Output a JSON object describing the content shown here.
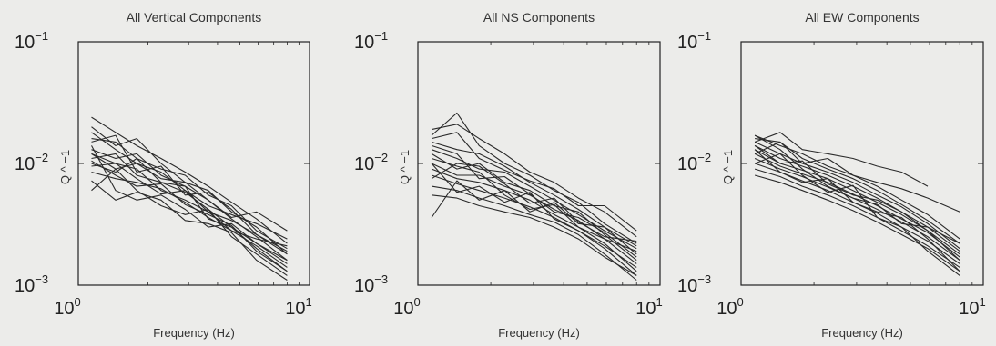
{
  "chart_data": [
    {
      "type": "line",
      "title": "All Vertical Components",
      "xlabel": "Frequency (Hz)",
      "ylabel": "Q ^ −1",
      "xscale": "log",
      "yscale": "log",
      "xlim": [
        1,
        10
      ],
      "ylim": [
        0.001,
        0.1
      ],
      "xticks": [
        {
          "base": "10",
          "exp": "0",
          "value": 1
        },
        {
          "base": "10",
          "exp": "1",
          "value": 10
        }
      ],
      "yticks": [
        {
          "base": "10",
          "exp": "−1",
          "value": 0.1
        },
        {
          "base": "10",
          "exp": "−2",
          "value": 0.01
        },
        {
          "base": "10",
          "exp": "−3",
          "value": 0.001
        }
      ],
      "grid": false,
      "x": [
        1.14,
        1.45,
        1.79,
        2.28,
        2.9,
        3.65,
        4.6,
        5.9,
        8.0
      ],
      "series": [
        {
          "values": [
            0.024,
            0.018,
            0.014,
            0.011,
            0.0085,
            0.0065,
            0.0048,
            0.0035,
            0.0022
          ]
        },
        {
          "values": [
            0.02,
            0.014,
            0.016,
            0.01,
            0.007,
            0.006,
            0.004,
            0.003,
            0.0018
          ]
        },
        {
          "values": [
            0.016,
            0.015,
            0.011,
            0.009,
            0.008,
            0.0055,
            0.0045,
            0.0028,
            0.002
          ]
        },
        {
          "values": [
            0.013,
            0.011,
            0.012,
            0.008,
            0.0065,
            0.005,
            0.0035,
            0.0025,
            0.0016
          ]
        },
        {
          "values": [
            0.012,
            0.009,
            0.01,
            0.0085,
            0.006,
            0.0045,
            0.0038,
            0.0032,
            0.0024
          ]
        },
        {
          "values": [
            0.011,
            0.012,
            0.008,
            0.007,
            0.0058,
            0.0042,
            0.003,
            0.0022,
            0.0015
          ]
        },
        {
          "values": [
            0.0095,
            0.01,
            0.009,
            0.006,
            0.005,
            0.004,
            0.0034,
            0.0026,
            0.0019
          ]
        },
        {
          "values": [
            0.0085,
            0.0075,
            0.007,
            0.0062,
            0.0048,
            0.0036,
            0.0028,
            0.0021,
            0.0014
          ]
        },
        {
          "values": [
            0.006,
            0.009,
            0.006,
            0.0045,
            0.0038,
            0.0042,
            0.0025,
            0.0018,
            0.0012
          ]
        },
        {
          "values": [
            0.014,
            0.006,
            0.005,
            0.0055,
            0.0042,
            0.003,
            0.0032,
            0.0022,
            0.0016
          ]
        },
        {
          "values": [
            0.018,
            0.013,
            0.01,
            0.0075,
            0.007,
            0.005,
            0.0036,
            0.004,
            0.0028
          ]
        },
        {
          "values": [
            0.01,
            0.0085,
            0.011,
            0.007,
            0.0065,
            0.0035,
            0.003,
            0.002,
            0.0013
          ]
        },
        {
          "values": [
            0.0072,
            0.005,
            0.0058,
            0.005,
            0.0034,
            0.0032,
            0.0027,
            0.0016,
            0.0011
          ]
        },
        {
          "values": [
            0.015,
            0.017,
            0.0085,
            0.0095,
            0.0055,
            0.0058,
            0.0042,
            0.0026,
            0.0018
          ]
        },
        {
          "values": [
            0.012,
            0.01,
            0.0075,
            0.0056,
            0.006,
            0.004,
            0.0028,
            0.0024,
            0.0021
          ]
        },
        {
          "values": [
            0.0105,
            0.008,
            0.0065,
            0.0068,
            0.0046,
            0.0038,
            0.0031,
            0.0019,
            0.0013
          ]
        }
      ]
    },
    {
      "type": "line",
      "title": "All NS Components",
      "xlabel": "Frequency (Hz)",
      "ylabel": "Q ^ −1",
      "xscale": "log",
      "yscale": "log",
      "xlim": [
        1,
        10
      ],
      "ylim": [
        0.001,
        0.1
      ],
      "xticks": [
        {
          "base": "10",
          "exp": "0",
          "value": 1
        },
        {
          "base": "10",
          "exp": "1",
          "value": 10
        }
      ],
      "yticks": [
        {
          "base": "10",
          "exp": "−1",
          "value": 0.1
        },
        {
          "base": "10",
          "exp": "−2",
          "value": 0.01
        },
        {
          "base": "10",
          "exp": "−3",
          "value": 0.001
        }
      ],
      "grid": false,
      "x": [
        1.14,
        1.45,
        1.79,
        2.28,
        2.9,
        3.65,
        4.6,
        5.9,
        8.0
      ],
      "series": [
        {
          "values": [
            0.019,
            0.021,
            0.016,
            0.012,
            0.0085,
            0.007,
            0.0052,
            0.004,
            0.0025
          ]
        },
        {
          "values": [
            0.017,
            0.026,
            0.014,
            0.01,
            0.008,
            0.006,
            0.0048,
            0.0032,
            0.0022
          ]
        },
        {
          "values": [
            0.015,
            0.013,
            0.012,
            0.0095,
            0.007,
            0.0055,
            0.0042,
            0.003,
            0.0018
          ]
        },
        {
          "values": [
            0.013,
            0.011,
            0.009,
            0.0085,
            0.0065,
            0.005,
            0.0038,
            0.0028,
            0.002
          ]
        },
        {
          "values": [
            0.012,
            0.009,
            0.01,
            0.007,
            0.006,
            0.0045,
            0.004,
            0.0026,
            0.0016
          ]
        },
        {
          "values": [
            0.01,
            0.008,
            0.008,
            0.0065,
            0.0055,
            0.0042,
            0.0034,
            0.0024,
            0.0015
          ]
        },
        {
          "values": [
            0.009,
            0.0075,
            0.007,
            0.006,
            0.005,
            0.0038,
            0.003,
            0.0022,
            0.0013
          ]
        },
        {
          "values": [
            0.008,
            0.0068,
            0.006,
            0.0052,
            0.0044,
            0.0036,
            0.0028,
            0.002,
            0.0012
          ]
        },
        {
          "values": [
            0.0065,
            0.006,
            0.0052,
            0.0045,
            0.0038,
            0.0033,
            0.0026,
            0.0018,
            0.0011
          ]
        },
        {
          "values": [
            0.0055,
            0.0052,
            0.0045,
            0.004,
            0.0036,
            0.003,
            0.0024,
            0.0017,
            0.0012
          ]
        },
        {
          "values": [
            0.0036,
            0.0072,
            0.005,
            0.006,
            0.004,
            0.0048,
            0.0032,
            0.003,
            0.0021
          ]
        },
        {
          "values": [
            0.016,
            0.018,
            0.011,
            0.0088,
            0.0072,
            0.0062,
            0.0045,
            0.0045,
            0.0028
          ]
        },
        {
          "values": [
            0.011,
            0.0095,
            0.0085,
            0.0055,
            0.0042,
            0.0046,
            0.003,
            0.0024,
            0.0019
          ]
        },
        {
          "values": [
            0.014,
            0.012,
            0.0075,
            0.0078,
            0.0056,
            0.004,
            0.0036,
            0.0027,
            0.0017
          ]
        },
        {
          "values": [
            0.01,
            0.0058,
            0.0065,
            0.0048,
            0.0058,
            0.0035,
            0.0028,
            0.0021,
            0.0014
          ]
        },
        {
          "values": [
            0.0075,
            0.01,
            0.0095,
            0.0068,
            0.0047,
            0.0052,
            0.0033,
            0.0025,
            0.0023
          ]
        }
      ]
    },
    {
      "type": "line",
      "title": "All EW Components",
      "xlabel": "Frequency (Hz)",
      "ylabel": "Q ^ −1",
      "xscale": "log",
      "yscale": "log",
      "xlim": [
        1,
        10
      ],
      "ylim": [
        0.001,
        0.1
      ],
      "xticks": [
        {
          "base": "10",
          "exp": "0",
          "value": 1
        },
        {
          "base": "10",
          "exp": "1",
          "value": 10
        }
      ],
      "yticks": [
        {
          "base": "10",
          "exp": "−1",
          "value": 0.1
        },
        {
          "base": "10",
          "exp": "−2",
          "value": 0.01
        },
        {
          "base": "10",
          "exp": "−3",
          "value": 0.001
        }
      ],
      "grid": false,
      "x": [
        1.14,
        1.45,
        1.79,
        2.28,
        2.9,
        3.65,
        4.6,
        5.9,
        8.0
      ],
      "series": [
        {
          "values": [
            0.017,
            0.014,
            0.012,
            0.0095,
            0.008,
            0.0065,
            0.005,
            0.0038,
            0.0024
          ]
        },
        {
          "values": [
            0.016,
            0.015,
            0.011,
            0.009,
            0.0075,
            0.006,
            0.0046,
            0.0034,
            0.0022
          ]
        },
        {
          "values": [
            0.015,
            0.012,
            0.01,
            0.0085,
            0.007,
            0.0055,
            0.0044,
            0.0032,
            0.002
          ]
        },
        {
          "values": [
            0.014,
            0.011,
            0.0095,
            0.008,
            0.0065,
            0.0052,
            0.004,
            0.003,
            0.0019
          ]
        },
        {
          "values": [
            0.013,
            0.01,
            0.0088,
            0.0075,
            0.006,
            0.0048,
            0.0038,
            0.0028,
            0.0018
          ]
        },
        {
          "values": [
            0.012,
            0.0095,
            0.0082,
            0.007,
            0.0056,
            0.0045,
            0.0035,
            0.0027,
            0.0017
          ]
        },
        {
          "values": [
            0.011,
            0.009,
            0.0078,
            0.0064,
            0.0052,
            0.0042,
            0.0033,
            0.0025,
            0.0016
          ]
        },
        {
          "values": [
            0.01,
            0.0085,
            0.0072,
            0.006,
            0.0048,
            0.0039,
            0.003,
            0.0023,
            0.0015
          ]
        },
        {
          "values": [
            0.009,
            0.0078,
            0.0065,
            0.0055,
            0.0045,
            0.0036,
            0.0028,
            0.0021,
            0.0014
          ]
        },
        {
          "values": [
            0.008,
            0.007,
            0.006,
            0.005,
            0.0041,
            0.0033,
            0.0026,
            0.002,
            0.0013
          ]
        },
        {
          "values": [
            0.015,
            0.018,
            0.013,
            0.012,
            0.011,
            0.0095,
            0.0085,
            0.0065,
            null
          ]
        },
        {
          "values": [
            0.012,
            0.015,
            0.01,
            0.011,
            0.008,
            0.007,
            0.0062,
            0.0052,
            0.004
          ]
        },
        {
          "values": [
            0.017,
            0.013,
            0.009,
            0.0065,
            0.0052,
            0.0046,
            0.0032,
            0.003,
            0.0022
          ]
        },
        {
          "values": [
            0.013,
            0.0085,
            0.007,
            0.0075,
            0.0048,
            0.004,
            0.0036,
            0.0024,
            0.0013
          ]
        },
        {
          "values": [
            0.01,
            0.012,
            0.008,
            0.0058,
            0.0066,
            0.0036,
            0.003,
            0.0019,
            0.0012
          ]
        },
        {
          "values": [
            0.014,
            0.01,
            0.0105,
            0.0068,
            0.0055,
            0.005,
            0.004,
            0.0028,
            0.0016
          ]
        }
      ]
    }
  ]
}
